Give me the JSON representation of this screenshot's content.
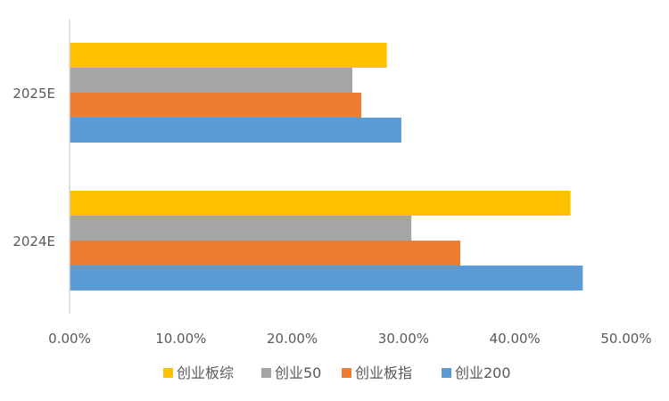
{
  "chart_data": {
    "type": "bar",
    "orientation": "horizontal",
    "categories": [
      "2025E",
      "2024E"
    ],
    "series": [
      {
        "name": "创业板综",
        "color": "#FFC000",
        "values": [
          0.285,
          0.45
        ]
      },
      {
        "name": "创业50",
        "color": "#A5A5A5",
        "values": [
          0.254,
          0.307
        ]
      },
      {
        "name": "创业板指",
        "color": "#ED7D31",
        "values": [
          0.262,
          0.351
        ]
      },
      {
        "name": "创业200",
        "color": "#5B9BD5",
        "values": [
          0.298,
          0.461
        ]
      }
    ],
    "xlim": [
      0,
      0.5
    ],
    "x_ticks": [
      "0.00%",
      "10.00%",
      "20.00%",
      "30.00%",
      "40.00%",
      "50.00%"
    ],
    "x_tick_values": [
      0,
      0.1,
      0.2,
      0.3,
      0.4,
      0.5
    ],
    "title": "",
    "xlabel": "",
    "ylabel": "",
    "grid": false,
    "legend_position": "bottom"
  }
}
